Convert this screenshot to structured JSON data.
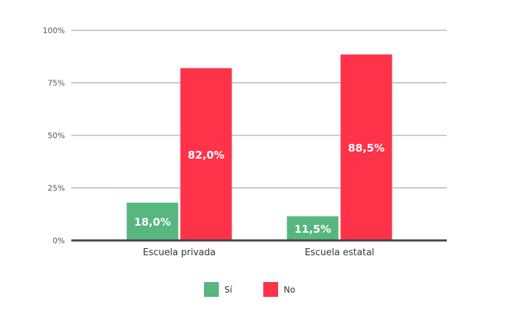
{
  "chart_data": {
    "type": "bar",
    "categories": [
      "Escuela privada",
      "Escuela estatal"
    ],
    "series": [
      {
        "name": "Sí",
        "values": [
          18.0,
          11.5
        ],
        "labels": [
          "18,0%",
          "11,5%"
        ],
        "color": "#57b77f"
      },
      {
        "name": "No",
        "values": [
          82.0,
          88.5
        ],
        "labels": [
          "82,0%",
          "88,5%"
        ],
        "color": "#fe334a"
      }
    ],
    "yticks": [
      0,
      25,
      50,
      75,
      100
    ],
    "ytick_labels": [
      "0%",
      "25%",
      "50%",
      "75%",
      "100%"
    ],
    "ylim": [
      0,
      100
    ],
    "grid": true,
    "legend": "bottom"
  }
}
